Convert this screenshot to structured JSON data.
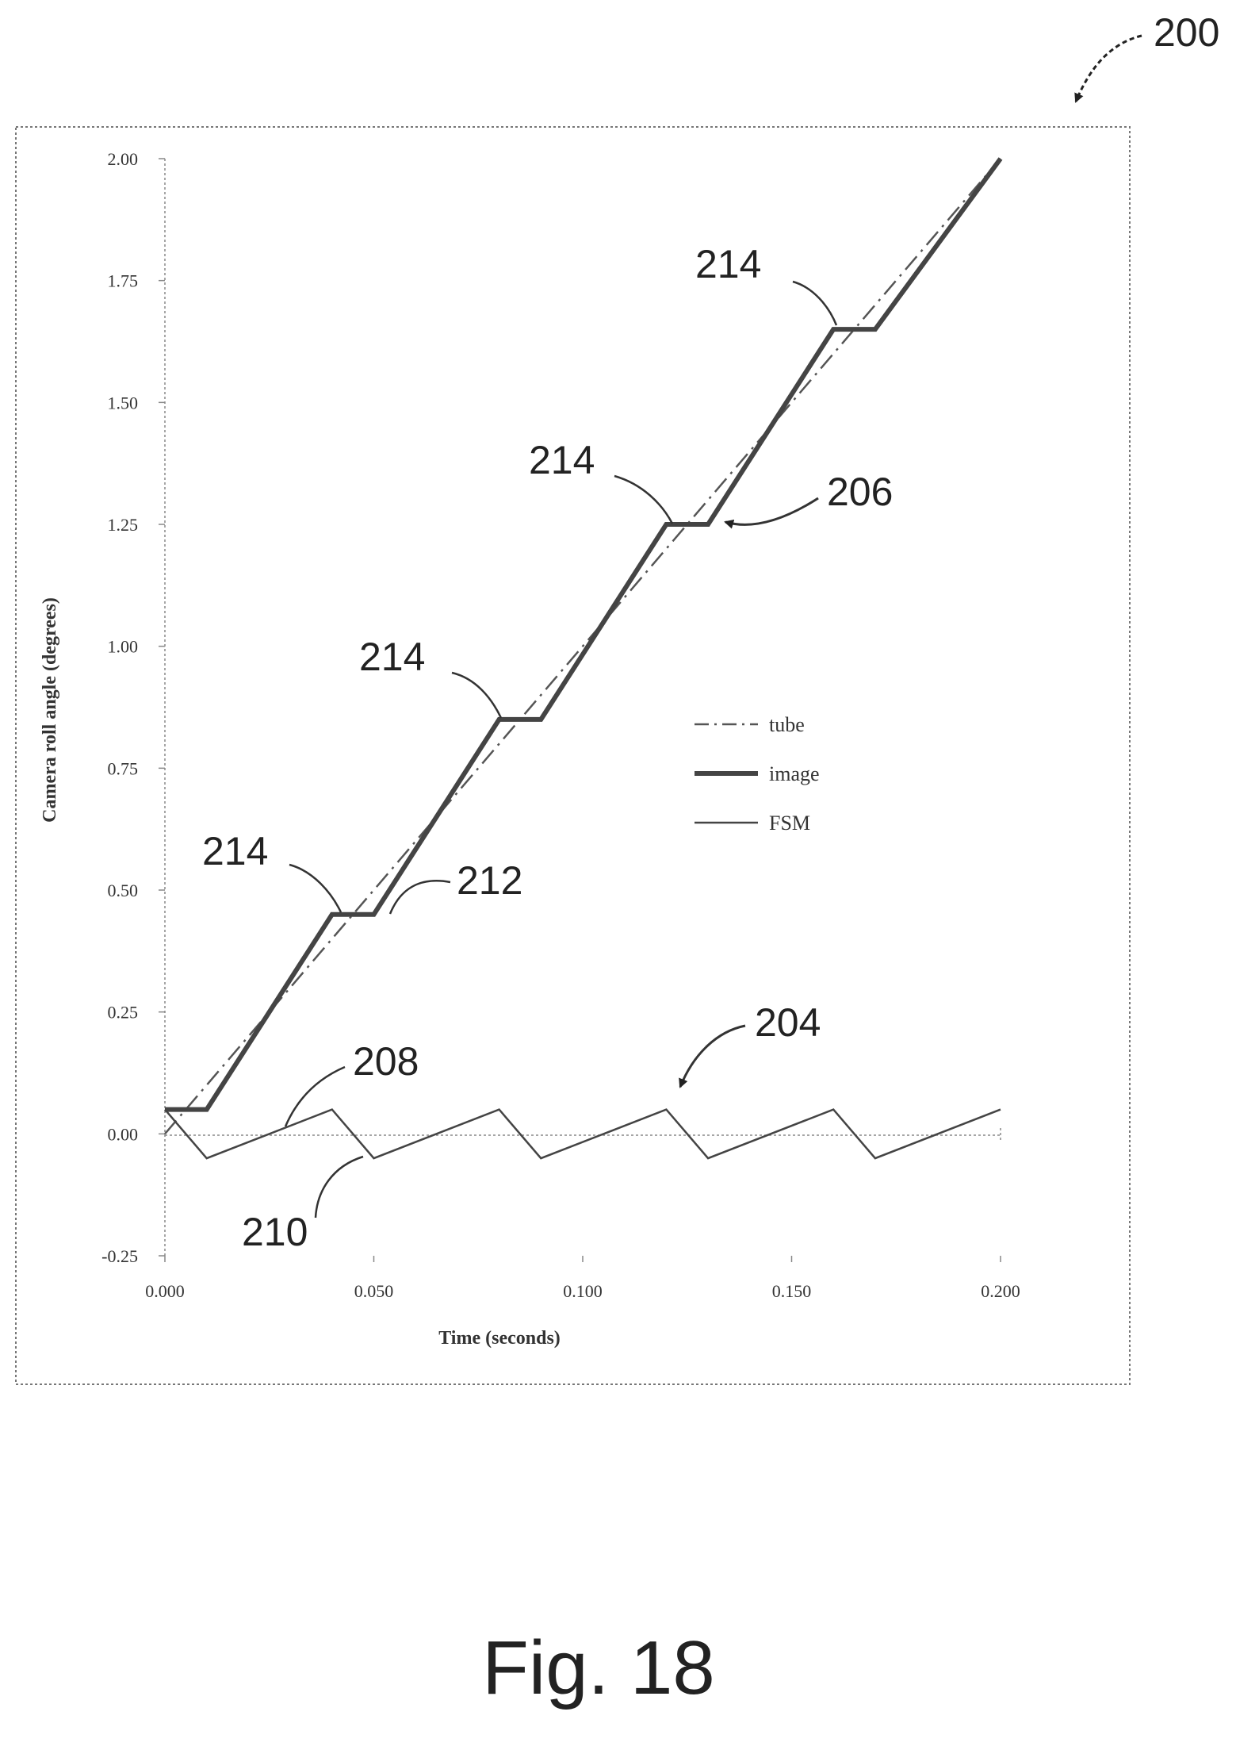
{
  "figure": {
    "number": "200",
    "caption": "Fig. 18"
  },
  "chart_data": {
    "type": "line",
    "xlabel": "Time (seconds)",
    "ylabel": "Camera roll angle (degrees)",
    "xlim": [
      0.0,
      0.2
    ],
    "ylim": [
      -0.25,
      2.0
    ],
    "x_ticks": [
      "0.000",
      "0.050",
      "0.100",
      "0.150",
      "0.200"
    ],
    "y_ticks": [
      "-0.25",
      "0.00",
      "0.25",
      "0.50",
      "0.75",
      "1.00",
      "1.25",
      "1.50",
      "1.75",
      "2.00"
    ],
    "legend_position": "right-middle",
    "series": [
      {
        "name": "tube",
        "style": "dash-dot",
        "x": [
          0.0,
          0.2
        ],
        "y": [
          0.0,
          2.0
        ]
      },
      {
        "name": "image",
        "style": "thick",
        "x": [
          0.0,
          0.01,
          0.04,
          0.05,
          0.08,
          0.09,
          0.12,
          0.13,
          0.16,
          0.17,
          0.2
        ],
        "y": [
          0.05,
          0.05,
          0.45,
          0.45,
          0.85,
          0.85,
          1.25,
          1.25,
          1.65,
          1.65,
          2.0
        ]
      },
      {
        "name": "FSM",
        "style": "thin",
        "x": [
          0.0,
          0.01,
          0.04,
          0.05,
          0.08,
          0.09,
          0.12,
          0.13,
          0.16,
          0.17,
          0.2
        ],
        "y": [
          0.05,
          -0.05,
          0.05,
          -0.05,
          0.05,
          -0.05,
          0.05,
          -0.05,
          0.05,
          -0.05,
          0.05
        ]
      }
    ]
  },
  "annotations": [
    {
      "label": "214"
    },
    {
      "label": "214"
    },
    {
      "label": "214"
    },
    {
      "label": "214"
    },
    {
      "label": "206"
    },
    {
      "label": "212"
    },
    {
      "label": "208"
    },
    {
      "label": "210"
    },
    {
      "label": "204"
    }
  ]
}
